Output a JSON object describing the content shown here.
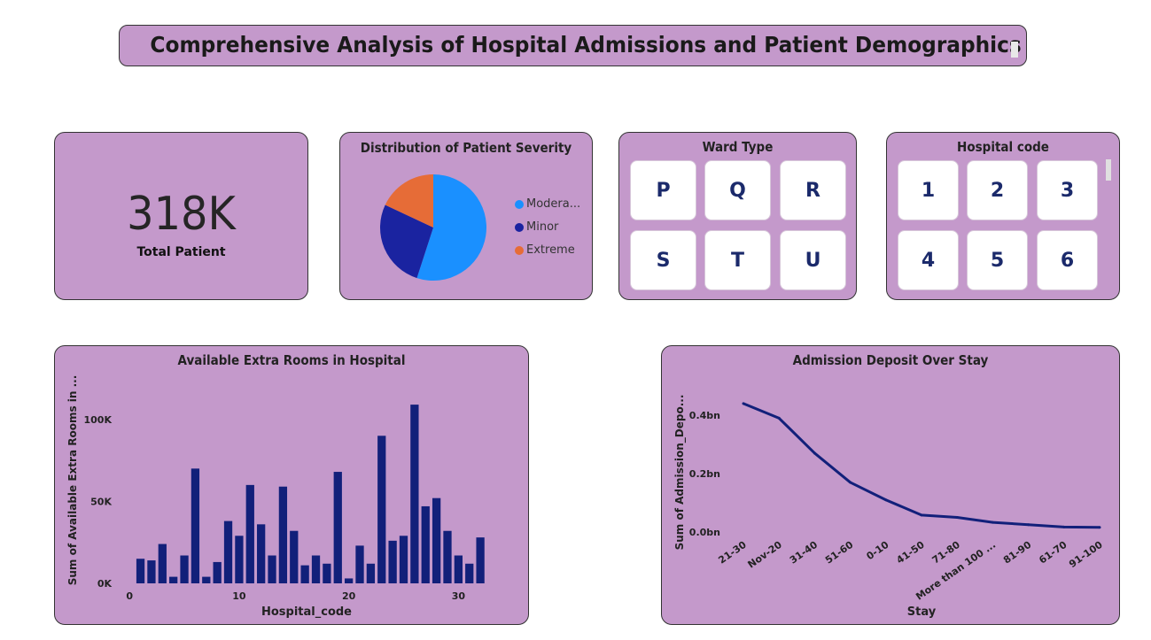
{
  "header": {
    "title": "Comprehensive Analysis of Hospital Admissions and Patient Demographics"
  },
  "kpi": {
    "value": "318K",
    "label": "Total Patient"
  },
  "pie": {
    "title": "Distribution of Patient Severity",
    "legend": [
      {
        "label": "Modera...",
        "color": "#1a90ff"
      },
      {
        "label": "Minor",
        "color": "#1a23a0"
      },
      {
        "label": "Extreme",
        "color": "#e66c37"
      }
    ]
  },
  "ward_slicer": {
    "title": "Ward Type",
    "options": [
      "P",
      "Q",
      "R",
      "S",
      "T",
      "U"
    ]
  },
  "hospital_slicer": {
    "title": "Hospital code",
    "options": [
      "1",
      "2",
      "3",
      "4",
      "5",
      "6"
    ]
  },
  "colors": {
    "card_bg": "#c499cb",
    "bar": "#12207a",
    "line": "#12207a"
  },
  "chart_data": [
    {
      "type": "pie",
      "title": "Distribution of Patient Severity",
      "categories": [
        "Modera...",
        "Minor",
        "Extreme"
      ],
      "values": [
        55,
        27,
        18
      ]
    },
    {
      "type": "bar",
      "title": "Available Extra Rooms in Hospital",
      "xlabel": "Hospital_code",
      "ylabel": "Sum of Available Extra Rooms in ...",
      "x": [
        1,
        2,
        3,
        4,
        5,
        6,
        7,
        8,
        9,
        10,
        11,
        12,
        13,
        14,
        15,
        16,
        17,
        18,
        19,
        20,
        21,
        22,
        23,
        24,
        25,
        26,
        27,
        28,
        29,
        30,
        31,
        32
      ],
      "values": [
        15000,
        14000,
        24000,
        4000,
        17000,
        70000,
        4000,
        13000,
        38000,
        29000,
        60000,
        36000,
        17000,
        59000,
        32000,
        11000,
        17000,
        12000,
        68000,
        3000,
        23000,
        12000,
        90000,
        26000,
        29000,
        109000,
        47000,
        52000,
        32000,
        17000,
        12000,
        28000
      ],
      "xticks": [
        0,
        10,
        20,
        30
      ],
      "yticks": [
        "0K",
        "50K",
        "100K"
      ],
      "ylim": [
        0,
        115000
      ],
      "xlim": [
        -0.5,
        32.8
      ]
    },
    {
      "type": "line",
      "title": "Admission Deposit Over Stay",
      "xlabel": "Stay",
      "ylabel": "Sum of Admission_Depo...",
      "categories": [
        "21-30",
        "Nov-20",
        "31-40",
        "51-60",
        "0-10",
        "41-50",
        "71-80",
        "More than 100 ...",
        "81-90",
        "61-70",
        "91-100"
      ],
      "values": [
        0.44,
        0.39,
        0.27,
        0.17,
        0.11,
        0.058,
        0.05,
        0.033,
        0.025,
        0.017,
        0.016
      ],
      "yticks": [
        "0.0bn",
        "0.2bn",
        "0.4bn"
      ],
      "ylim": [
        0,
        0.47
      ]
    }
  ]
}
